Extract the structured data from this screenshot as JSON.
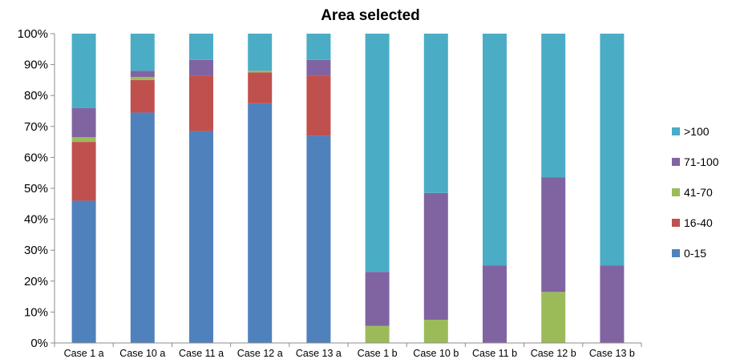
{
  "chart_data": {
    "type": "bar",
    "stacked": true,
    "percent": true,
    "title": "Area selected",
    "xlabel": "",
    "ylabel": "",
    "ylim": [
      0,
      100
    ],
    "ytick_labels": [
      "0%",
      "10%",
      "20%",
      "30%",
      "40%",
      "50%",
      "60%",
      "70%",
      "80%",
      "90%",
      "100%"
    ],
    "grid": false,
    "legend_position": "right",
    "categories": [
      "Case 1 a",
      "Case 10 a",
      "Case 11 a",
      "Case 12 a",
      "Case 13 a",
      "Case 1 b",
      "Case 10 b",
      "Case 11 b",
      "Case 12 b",
      "Case 13 b"
    ],
    "series": [
      {
        "name": "0-15",
        "color": "#4F81BD",
        "values": [
          46,
          74.5,
          68.5,
          77.5,
          67,
          0,
          0,
          0,
          0,
          0
        ]
      },
      {
        "name": "16-40",
        "color": "#C0504D",
        "values": [
          19,
          10.5,
          18,
          10,
          19.5,
          0,
          0,
          0,
          0,
          0
        ]
      },
      {
        "name": "41-70",
        "color": "#9BBB59",
        "values": [
          1.5,
          1,
          0,
          0.5,
          0,
          5.5,
          7.5,
          0,
          16.5,
          0
        ]
      },
      {
        "name": "71-100",
        "color": "#8064A2",
        "values": [
          9.5,
          2,
          5,
          0,
          5,
          17.5,
          41,
          25,
          37,
          25
        ]
      },
      {
        "name": ">100",
        "color": "#4BACC6",
        "values": [
          24,
          12,
          8.5,
          12,
          8.5,
          77,
          51.5,
          75,
          46.5,
          75
        ]
      }
    ],
    "legend_order": [
      ">100",
      "71-100",
      "41-70",
      "16-40",
      "0-15"
    ]
  }
}
